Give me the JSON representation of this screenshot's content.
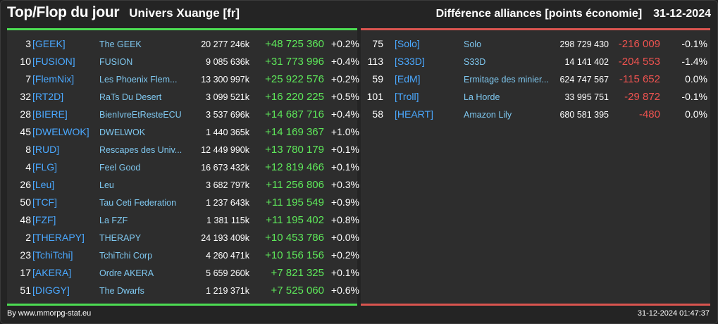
{
  "header": {
    "title": "Top/Flop du jour",
    "universe": "Univers Xuange [fr]",
    "metric": "Différence alliances [points économie]",
    "date": "31-12-2024"
  },
  "top": [
    {
      "rank": "3",
      "tag": "[GEEK]",
      "name": "The GEEK",
      "points": "20 277 246k",
      "diff": "+48 725 360",
      "pct": "+0.2%"
    },
    {
      "rank": "10",
      "tag": "[FUSION]",
      "name": "FUSION",
      "points": "9 085 636k",
      "diff": "+31 773 996",
      "pct": "+0.4%"
    },
    {
      "rank": "7",
      "tag": "[FlemNix]",
      "name": "Les Phoenix Flem...",
      "points": "13 300 997k",
      "diff": "+25 922 576",
      "pct": "+0.2%"
    },
    {
      "rank": "32",
      "tag": "[RT2D]",
      "name": "RaTs Du Desert",
      "points": "3 099 521k",
      "diff": "+16 220 225",
      "pct": "+0.5%"
    },
    {
      "rank": "28",
      "tag": "[BIERE]",
      "name": "BienIvreEtResteECU",
      "points": "3 537 696k",
      "diff": "+14 687 716",
      "pct": "+0.4%"
    },
    {
      "rank": "45",
      "tag": "[DWELWOK]",
      "name": "DWELWOK",
      "points": "1 440 365k",
      "diff": "+14 169 367",
      "pct": "+1.0%"
    },
    {
      "rank": "8",
      "tag": "[RUD]",
      "name": "Rescapes des Univ...",
      "points": "12 449 990k",
      "diff": "+13 780 179",
      "pct": "+0.1%"
    },
    {
      "rank": "4",
      "tag": "[FLG]",
      "name": "Feel Good",
      "points": "16 673 432k",
      "diff": "+12 819 466",
      "pct": "+0.1%"
    },
    {
      "rank": "26",
      "tag": "[Leu]",
      "name": "Leu",
      "points": "3 682 797k",
      "diff": "+11 256 806",
      "pct": "+0.3%"
    },
    {
      "rank": "50",
      "tag": "[TCF]",
      "name": "Tau Ceti Federation",
      "points": "1 237 643k",
      "diff": "+11 195 549",
      "pct": "+0.9%"
    },
    {
      "rank": "48",
      "tag": "[FZF]",
      "name": "La FZF",
      "points": "1 381 115k",
      "diff": "+11 195 402",
      "pct": "+0.8%"
    },
    {
      "rank": "2",
      "tag": "[THERAPY]",
      "name": "THERAPY",
      "points": "24 193 409k",
      "diff": "+10 453 786",
      "pct": "+0.0%"
    },
    {
      "rank": "23",
      "tag": "[TchiTchi]",
      "name": "TchiTchi Corp",
      "points": "4 260 471k",
      "diff": "+10 156 156",
      "pct": "+0.2%"
    },
    {
      "rank": "17",
      "tag": "[AKERA]",
      "name": "Ordre AKERA",
      "points": "5 659 260k",
      "diff": "+7 821 325",
      "pct": "+0.1%"
    },
    {
      "rank": "51",
      "tag": "[DIGGY]",
      "name": "The Dwarfs",
      "points": "1 219 371k",
      "diff": "+7 525 060",
      "pct": "+0.6%"
    }
  ],
  "flop": [
    {
      "rank": "75",
      "tag": "[Solo]",
      "name": "Solo",
      "points": "298 729 430",
      "diff": "-216 009",
      "pct": "-0.1%"
    },
    {
      "rank": "113",
      "tag": "[S33D]",
      "name": "S33D",
      "points": "14 141 402",
      "diff": "-204 553",
      "pct": "-1.4%"
    },
    {
      "rank": "59",
      "tag": "[EdM]",
      "name": "Ermitage des minier...",
      "points": "624 747 567",
      "diff": "-115 652",
      "pct": "0.0%"
    },
    {
      "rank": "101",
      "tag": "[Troll]",
      "name": "La Horde",
      "points": "33 995 751",
      "diff": "-29 872",
      "pct": "-0.1%"
    },
    {
      "rank": "58",
      "tag": "[HEART]",
      "name": "Amazon Lily",
      "points": "680 581 395",
      "diff": "-480",
      "pct": "0.0%"
    }
  ],
  "footer": {
    "credit": "By www.mmorpg-stat.eu",
    "timestamp": "31-12-2024 01:47:37"
  },
  "colors": {
    "positive": "#5ee85a",
    "negative": "#ef5350",
    "tag": "#4aa8ff",
    "top_bar": "#4cdc52",
    "flop_bar": "#d9544f"
  }
}
